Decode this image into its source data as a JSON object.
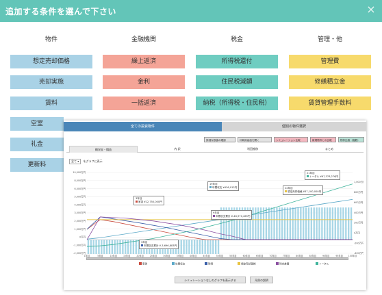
{
  "modal": {
    "title": "追加する条件を選んで下さい",
    "close_icon": "×"
  },
  "columns": [
    {
      "heading": "物件",
      "color": "#a9d2e6",
      "items": [
        "想定売却価格",
        "売却実施",
        "賃料",
        "空室",
        "礼金",
        "更新料"
      ]
    },
    {
      "heading": "金融機関",
      "color": "#f4a497",
      "items": [
        "繰上返済",
        "金利",
        "一括返済"
      ]
    },
    {
      "heading": "税金",
      "color": "#6fcdc1",
      "items": [
        "所得税還付",
        "住民税減額",
        "納税（所得税・住民税）"
      ]
    },
    {
      "heading": "管理・他",
      "color": "#f7da6c",
      "items": [
        "管理費",
        "修繕積立金",
        "賃貸管理手数料"
      ]
    }
  ],
  "overlay": {
    "tabs": {
      "active": "全ての投資物件",
      "inactive": "個別の物件選択"
    },
    "toolbar": {
      "btn1": "詳細な数値の確認",
      "btn2": "印刷用画面を開く",
      "btn3": "シミュレーション比較",
      "btn4": "新規物件との比較",
      "btn5": "物件比較（複数）"
    },
    "subtabs": [
      "概況支・損益",
      "内 訳",
      "利回推移",
      "まとめ"
    ],
    "filter": {
      "select_value": "全て",
      "label": "をグラフに表示"
    },
    "buttons": {
      "sim_graph": "シミュレーションなしのグラフを表示する",
      "legend_help": "凡例の説明"
    }
  },
  "chart_data": {
    "type": "bar",
    "ylim": [
      -2000,
      10000
    ],
    "y2lim": [
      -2000,
      10000
    ],
    "y_ticks": [
      "10,000万円",
      "8,000万円",
      "6,000万円",
      "5,000万円",
      "4,000万円",
      "3,000万円",
      "2,000万円",
      "1,000万円",
      "0万円",
      "-1,000万円",
      "-2,000万円"
    ],
    "y2_ticks": [
      "1,000万円",
      "800万円",
      "600万円",
      "400万円",
      "200万円",
      "0万円",
      "-200万円",
      "-400万円"
    ],
    "x_ticks": [
      "1年目",
      "5年目",
      "10年目",
      "15年目",
      "20年目",
      "25年目",
      "30年目",
      "35年目",
      "40年目",
      "45年目",
      "50年目",
      "55年目",
      "60年目",
      "65年目",
      "70年目",
      "75年目",
      "80年目",
      "85年目",
      "90年目",
      "95年目",
      "100年目"
    ],
    "legend": [
      {
        "name": "家賃",
        "color": "#c94b3e"
      },
      {
        "name": "年間収支",
        "color": "#5aa8c8"
      },
      {
        "name": "残債",
        "color": "#3a5ea8"
      },
      {
        "name": "想定売却価格",
        "color": "#e8c341"
      },
      {
        "name": "残余差額",
        "color": "#8a4ea0"
      },
      {
        "name": "トータル",
        "color": "#3fb49c"
      }
    ],
    "series": [
      {
        "name": "家賃",
        "color": "#c94b3e",
        "values": [
          1550,
          3000,
          2700,
          2300,
          1900,
          1500,
          1100,
          700,
          300,
          0,
          0,
          0,
          0,
          0,
          0,
          0,
          0,
          0,
          0,
          0,
          0
        ]
      },
      {
        "name": "年間収支",
        "color": "#5aa8c8",
        "values": [
          100,
          300,
          600,
          900,
          1200,
          1500,
          1800,
          2100,
          2400,
          2700,
          3000,
          3300,
          3600,
          3900,
          4200,
          4500,
          4800,
          5100,
          5400,
          5700,
          6000
        ]
      },
      {
        "name": "残債",
        "color": "#3a5ea8",
        "values": [
          1550,
          3400,
          3100,
          2800,
          2500,
          2150,
          1800,
          1400,
          1000,
          600,
          200,
          0,
          0,
          0,
          0,
          0,
          0,
          0,
          0,
          0,
          0
        ]
      },
      {
        "name": "想定売却価格",
        "color": "#e8c341",
        "values": [
          3000,
          3000,
          3000,
          3000,
          3000,
          3000,
          3000,
          3000,
          3000,
          3000,
          3000,
          3000,
          3000,
          3000,
          3000,
          3000,
          3000,
          3000,
          3000,
          3000,
          3000
        ]
      },
      {
        "name": "残余差額",
        "color": "#8a4ea0",
        "values": [
          0,
          3400,
          3300,
          3200,
          3000,
          2800,
          2500,
          2200,
          1800,
          1400,
          900,
          500,
          0,
          0,
          0,
          0,
          0,
          0,
          0,
          0,
          0
        ]
      },
      {
        "name": "トータル",
        "color": "#3fb49c",
        "values": [
          -1000,
          -900,
          -700,
          -400,
          -100,
          200,
          600,
          1000,
          1400,
          1900,
          2400,
          2900,
          3500,
          4100,
          4700,
          5300,
          5900,
          6500,
          7100,
          7700,
          8300
        ]
      }
    ],
    "bar_values": [
      -300,
      -300,
      -300,
      -300,
      -300,
      -300,
      -300,
      -300,
      -300,
      -300,
      -300,
      -300,
      -300,
      -300,
      -300,
      -300,
      -300,
      -300,
      -300,
      -300,
      -300,
      -300,
      -300,
      -300,
      -300,
      -300,
      -300,
      -300,
      -300,
      -300,
      -300,
      -300,
      -300,
      -300,
      -300,
      -300,
      -300,
      -300,
      -300,
      -300,
      -300,
      -300,
      -300,
      -300,
      -300,
      -300,
      -300,
      -300,
      -300,
      -300,
      400,
      400,
      400,
      400,
      400,
      400,
      400,
      400,
      400,
      400,
      400,
      400,
      400,
      400,
      400,
      400,
      400,
      400,
      400,
      400,
      400,
      400,
      400,
      400,
      400,
      400,
      400,
      400,
      400,
      400,
      400,
      400,
      400,
      400,
      400,
      400,
      400,
      400,
      400,
      400,
      400,
      400,
      400,
      400,
      400,
      400,
      400,
      400,
      400,
      400
    ],
    "callouts": [
      {
        "year": "21年目",
        "text": "トータル ¥67,376,276円"
      },
      {
        "year": "3年目",
        "text": "家賃 ¥12,750,000円"
      },
      {
        "year": "22年目",
        "text": "想定売却価格 ¥37,100,000円"
      },
      {
        "year": "19年目",
        "text": "年間収支 ¥436,912円"
      },
      {
        "year": "9年目",
        "text": "年間収支累計 ¥-46,970,465円"
      },
      {
        "year": "9年目",
        "text": "年間収支累計 ¥-46,970,465円"
      },
      {
        "year": "3年目",
        "text": "年間収支累計 ¥-3,696,883円"
      }
    ]
  }
}
